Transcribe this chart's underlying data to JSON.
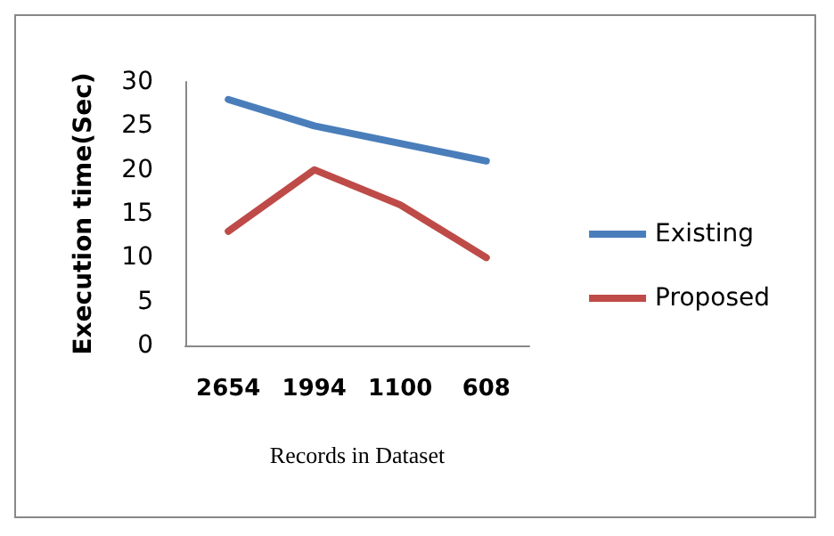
{
  "chart_data": {
    "type": "line",
    "xlabel": "Records in Dataset",
    "ylabel": "Execution time(Sec)",
    "categories": [
      "2654",
      "1994",
      "1100",
      "608"
    ],
    "series": [
      {
        "name": "Existing",
        "color": "#4a7ebb",
        "values": [
          28,
          25,
          23,
          21
        ]
      },
      {
        "name": "Proposed",
        "color": "#be4b48",
        "values": [
          13,
          20,
          16,
          10
        ]
      }
    ],
    "ylim": [
      0,
      30
    ],
    "yticks": [
      0,
      5,
      10,
      15,
      20,
      25,
      30
    ],
    "grid": false,
    "legend": "right",
    "marker": "none",
    "line_style": "solid"
  }
}
